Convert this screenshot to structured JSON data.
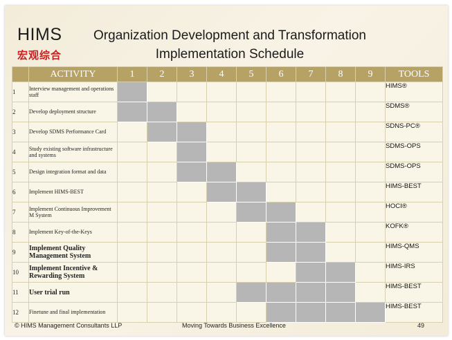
{
  "logo": {
    "en": "HIMS",
    "cn": "宏观综合"
  },
  "title": {
    "line1": "Organization Development and Transformation",
    "line2": "Implementation Schedule"
  },
  "table": {
    "headers": {
      "num": "",
      "activity": "ACTIVITY",
      "periods": [
        "1",
        "2",
        "3",
        "4",
        "5",
        "6",
        "7",
        "8",
        "9"
      ],
      "tools": "TOOLS"
    },
    "rows": [
      {
        "num": "1",
        "activity": "Interview management and operations staff",
        "tool": "HIMS®",
        "filled": [
          1
        ],
        "emphasis": false
      },
      {
        "num": "2",
        "activity": "Develop deployment structure",
        "tool": "SDMS®",
        "filled": [
          1,
          2
        ],
        "emphasis": false
      },
      {
        "num": "3",
        "activity": "Develop SDMS Performance Card",
        "tool": "SDNS-PC®",
        "filled": [
          2,
          3
        ],
        "emphasis": false
      },
      {
        "num": "4",
        "activity": "Study existing software infrastructure and systems",
        "tool": "SDMS-OPS",
        "filled": [
          3
        ],
        "emphasis": false
      },
      {
        "num": "5",
        "activity": "Design integration format and data",
        "tool": "SDMS-OPS",
        "filled": [
          3,
          4
        ],
        "emphasis": false
      },
      {
        "num": "6",
        "activity": "Implement HIMS-BEST",
        "tool": "HIMS-BEST",
        "filled": [
          4,
          5
        ],
        "emphasis": false
      },
      {
        "num": "7",
        "activity": "Implement Continuous Improvement M System",
        "tool": "HOCI®",
        "filled": [
          5,
          6
        ],
        "emphasis": false
      },
      {
        "num": "8",
        "activity": "Implement Key-of-the-Keys",
        "tool": "KOFK®",
        "filled": [
          6,
          7
        ],
        "emphasis": false
      },
      {
        "num": "9",
        "activity": "Implement Quality Management System",
        "tool": "HIMS-QMS",
        "filled": [
          6,
          7
        ],
        "emphasis": true
      },
      {
        "num": "10",
        "activity": "Implement Incentive & Rewarding System",
        "tool": "HIMS-IRS",
        "filled": [
          7,
          8
        ],
        "emphasis": true
      },
      {
        "num": "11",
        "activity": "User trial run",
        "tool": "HIMS-BEST",
        "filled": [
          5,
          6,
          7,
          8
        ],
        "emphasis": true
      },
      {
        "num": "12",
        "activity": "Finetune and final implementation",
        "tool": "HIMS-BEST",
        "filled": [
          6,
          7,
          8,
          9
        ],
        "emphasis": false
      }
    ]
  },
  "footer": {
    "copyright": "© HIMS Management Consultants LLP",
    "tagline": "Moving Towards Business Excellence",
    "page": "49"
  },
  "colors": {
    "header_bg": "#b7a265",
    "filled_cell": "#b6b6b6",
    "cell_bg": "#faf6e7",
    "logo_cn": "#c9201f"
  }
}
